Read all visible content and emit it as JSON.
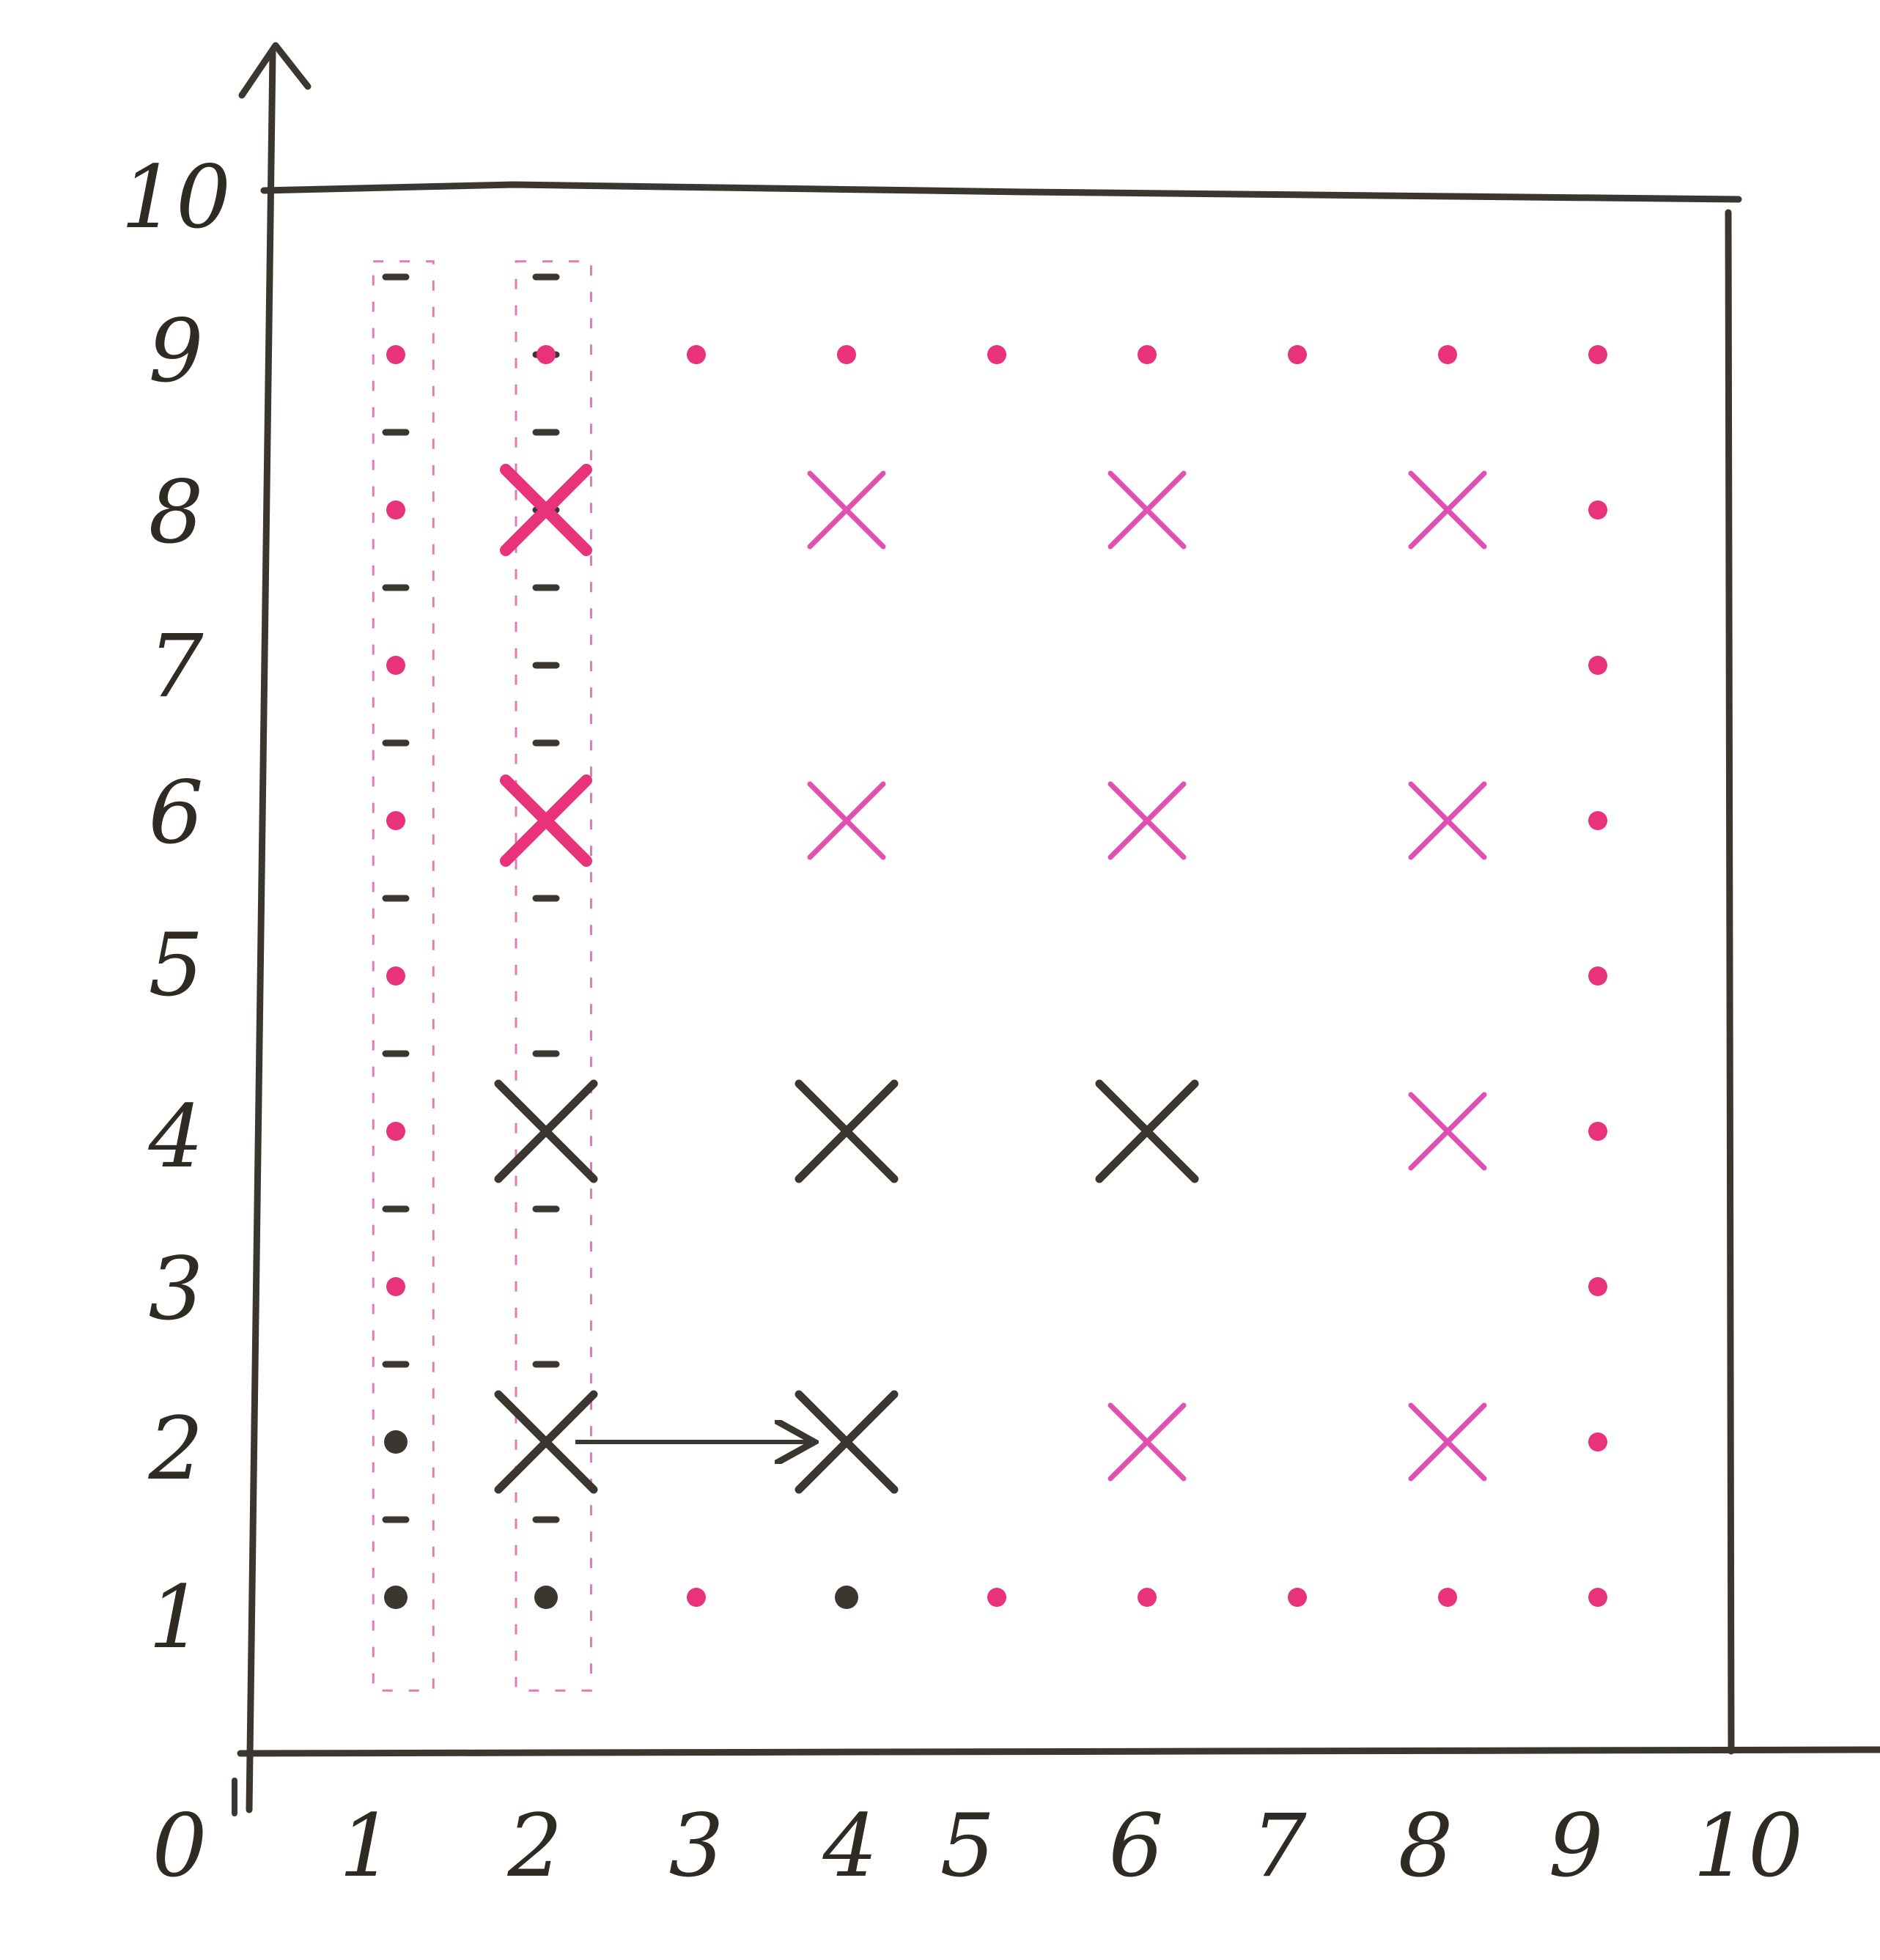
{
  "axes": {
    "x_ticks": [
      "0",
      "1",
      "2",
      "3",
      "4",
      "5",
      "6",
      "7",
      "8",
      "9",
      "10"
    ],
    "y_ticks": [
      "1",
      "2",
      "3",
      "4",
      "5",
      "6",
      "7",
      "8",
      "9",
      "10"
    ]
  },
  "grid": {
    "x_range": [
      0,
      10
    ],
    "y_range": [
      0,
      10
    ],
    "box": [
      0,
      10
    ]
  },
  "colors": {
    "ink": "#3b3630",
    "magenta": "#e8327a",
    "pink_mark": "#e050b0",
    "dash_box": "#d8409a"
  },
  "marks": {
    "pink_dots": [
      [
        1,
        9
      ],
      [
        2,
        9
      ],
      [
        3,
        9
      ],
      [
        4,
        9
      ],
      [
        5,
        9
      ],
      [
        6,
        9
      ],
      [
        7,
        9
      ],
      [
        8,
        9
      ],
      [
        9,
        9
      ],
      [
        1,
        8
      ],
      [
        9,
        8
      ],
      [
        1,
        7
      ],
      [
        9,
        7
      ],
      [
        1,
        6
      ],
      [
        9,
        6
      ],
      [
        1,
        5
      ],
      [
        9,
        5
      ],
      [
        1,
        4
      ],
      [
        9,
        4
      ],
      [
        1,
        3
      ],
      [
        9,
        3
      ],
      [
        9,
        2
      ],
      [
        3,
        1
      ],
      [
        5,
        1
      ],
      [
        6,
        1
      ],
      [
        7,
        1
      ],
      [
        8,
        1
      ],
      [
        9,
        1
      ]
    ],
    "dark_dots": [
      [
        1,
        2
      ],
      [
        1,
        1
      ],
      [
        2,
        1
      ],
      [
        4,
        1
      ]
    ],
    "small_dashes": [
      [
        1,
        9.5
      ],
      [
        2,
        9.5
      ],
      [
        1,
        8.5
      ],
      [
        2,
        8.5
      ],
      [
        1,
        7.5
      ],
      [
        2,
        7.5
      ],
      [
        2,
        7
      ],
      [
        1,
        6.5
      ],
      [
        2,
        6.5
      ],
      [
        1,
        5.5
      ],
      [
        2,
        5.5
      ],
      [
        1,
        4.5
      ],
      [
        2,
        4.5
      ],
      [
        1,
        3.5
      ],
      [
        2,
        3.5
      ],
      [
        1,
        2.5
      ],
      [
        2,
        2.5
      ],
      [
        1,
        1.5
      ],
      [
        2,
        1.5
      ],
      [
        2,
        8
      ],
      [
        2,
        9
      ]
    ],
    "pink_crosses": [
      [
        4,
        8
      ],
      [
        6,
        8
      ],
      [
        8,
        8
      ],
      [
        4,
        6
      ],
      [
        6,
        6
      ],
      [
        8,
        6
      ],
      [
        8,
        4
      ],
      [
        6,
        2
      ],
      [
        8,
        2
      ]
    ],
    "bold_pink_crosses": [
      [
        2,
        8
      ],
      [
        2,
        6
      ]
    ],
    "dark_crosses": [
      [
        2,
        4
      ],
      [
        4,
        4
      ],
      [
        6,
        4
      ],
      [
        2,
        2
      ],
      [
        4,
        2
      ]
    ],
    "arrow": {
      "from": [
        2,
        2
      ],
      "to": [
        4,
        2
      ]
    },
    "dashed_columns": [
      [
        0.85,
        9.6,
        1.25,
        0.4
      ],
      [
        1.8,
        9.6,
        2.3,
        0.4
      ]
    ]
  }
}
